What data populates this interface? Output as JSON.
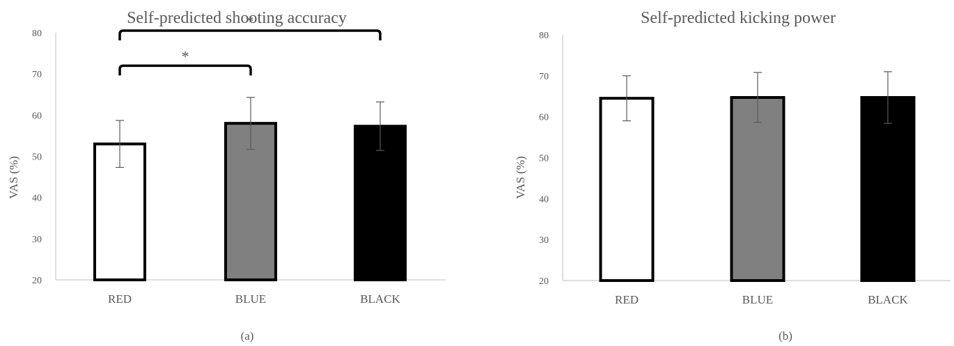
{
  "chart_data": [
    {
      "type": "bar",
      "title": "Self-predicted shooting accuracy",
      "ylabel": "VAS (%)",
      "xlabel": "",
      "categories": [
        "RED",
        "BLUE",
        "BLACK"
      ],
      "values": [
        53.0,
        58.0,
        57.3
      ],
      "error": [
        5.7,
        6.3,
        5.9
      ],
      "bar_colors": [
        "#ffffff",
        "#808080",
        "#000000"
      ],
      "ylim": [
        20,
        80
      ],
      "yticks": [
        "20",
        "30",
        "40",
        "50",
        "60",
        "70",
        "80"
      ],
      "grid": false,
      "annotations": [
        {
          "label": "*",
          "from": "RED",
          "to": "BLUE",
          "bracket_y": 72
        },
        {
          "label": "*",
          "from": "RED",
          "to": "BLACK",
          "bracket_y": 80.5
        }
      ],
      "panel_label": "(a)"
    },
    {
      "type": "bar",
      "title": "Self-predicted kicking power",
      "ylabel": "VAS (%)",
      "xlabel": "",
      "categories": [
        "RED",
        "BLUE",
        "BLACK"
      ],
      "values": [
        64.5,
        64.7,
        64.7
      ],
      "error": [
        5.5,
        6.1,
        6.3
      ],
      "bar_colors": [
        "#ffffff",
        "#808080",
        "#000000"
      ],
      "ylim": [
        20,
        80
      ],
      "yticks": [
        "20",
        "30",
        "40",
        "50",
        "60",
        "70",
        "80"
      ],
      "grid": false,
      "annotations": [],
      "panel_label": "(b)"
    }
  ]
}
